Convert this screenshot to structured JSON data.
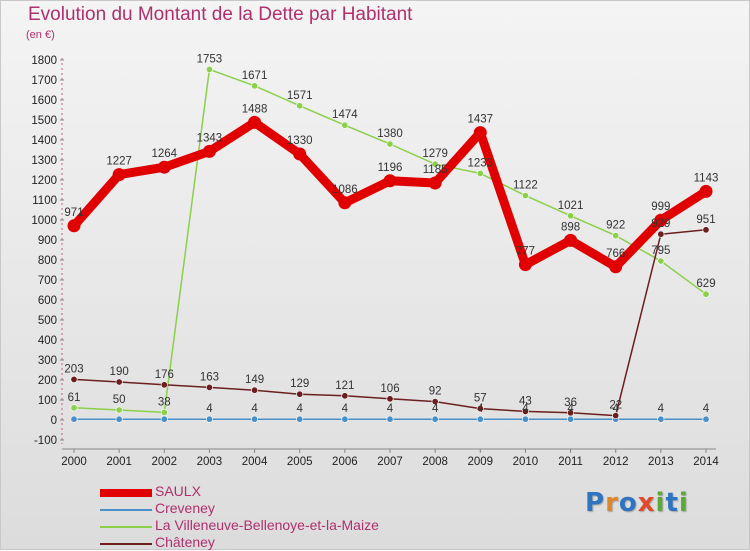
{
  "title": "Evolution du Montant de la Dette par Habitant",
  "subtitle": "(en €)",
  "logo": {
    "text": "Proxiti",
    "letters": [
      {
        "ch": "P",
        "color": "#2f74c0"
      },
      {
        "ch": "r",
        "color": "#e0862a"
      },
      {
        "ch": "o",
        "color": "#2f74c0"
      },
      {
        "ch": "x",
        "color": "#e04a2a"
      },
      {
        "ch": "i",
        "color": "#5aaa3a"
      },
      {
        "ch": "t",
        "color": "#2f74c0"
      },
      {
        "ch": "i",
        "color": "#5aaa3a"
      }
    ]
  },
  "chart_data": {
    "type": "line",
    "title": "Evolution du Montant de la Dette par Habitant",
    "subtitle": "(en €)",
    "x": [
      "2000",
      "2001",
      "2002",
      "2003",
      "2004",
      "2005",
      "2006",
      "2007",
      "2008",
      "2009",
      "2010",
      "2011",
      "2012",
      "2013",
      "2014"
    ],
    "ylim": [
      -100,
      1800
    ],
    "yticks": [
      -100,
      0,
      100,
      200,
      300,
      400,
      500,
      600,
      700,
      800,
      900,
      1000,
      1100,
      1200,
      1300,
      1400,
      1500,
      1600,
      1700,
      1800
    ],
    "grid": false,
    "legend_position": "bottom-left",
    "series": [
      {
        "name": "SAULX",
        "color": "#e00000",
        "values": [
          971,
          1227,
          1264,
          1343,
          1488,
          1330,
          1086,
          1196,
          1185,
          1437,
          777,
          898,
          766,
          999,
          1143
        ],
        "labels": [
          "971",
          "1227",
          "1264",
          "1343",
          "1488",
          "1330",
          "1086",
          "1196",
          "1185",
          "1437",
          "777",
          "898",
          "766",
          "999",
          "1143"
        ]
      },
      {
        "name": "Creveney",
        "color": "#4a90c8",
        "values": [
          4,
          4,
          4,
          4,
          4,
          4,
          4,
          4,
          4,
          4,
          4,
          4,
          4,
          4,
          4
        ],
        "labels": [
          "",
          "",
          "",
          "4",
          "4",
          "4",
          "4",
          "4",
          "4",
          "4",
          "4",
          "4",
          "4",
          "4",
          "4"
        ]
      },
      {
        "name": "La Villeneuve-Bellenoye-et-la-Maize",
        "color": "#8ad04a",
        "values": [
          61,
          50,
          38,
          1753,
          1671,
          1571,
          1474,
          1380,
          1279,
          1233,
          1122,
          1021,
          922,
          795,
          629
        ],
        "labels": [
          "61",
          "50",
          "38",
          "1753",
          "1671",
          "1571",
          "1474",
          "1380",
          "1279",
          "1233",
          "1122",
          "1021",
          "922",
          "795",
          "629"
        ]
      },
      {
        "name": "Châteney",
        "color": "#6b1f1f",
        "values": [
          203,
          190,
          176,
          163,
          149,
          129,
          121,
          106,
          92,
          57,
          43,
          36,
          22,
          929,
          951
        ],
        "labels": [
          "203",
          "190",
          "176",
          "163",
          "149",
          "129",
          "121",
          "106",
          "92",
          "57",
          "43",
          "36",
          "22",
          "929",
          "951"
        ]
      }
    ]
  }
}
